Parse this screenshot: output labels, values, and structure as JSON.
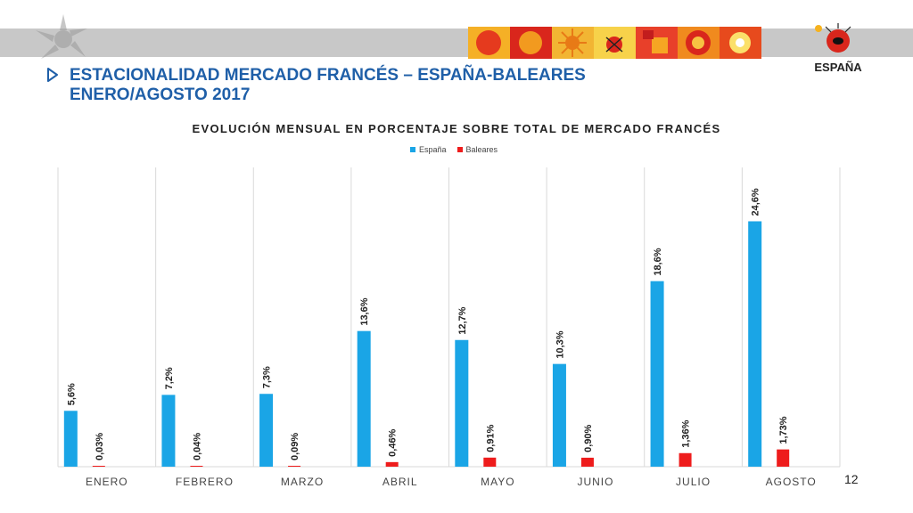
{
  "slide": {
    "title_line1": "ESTACIONALIDAD MERCADO FRANCÉS – ESPAÑA-BALEARES",
    "title_line2": "ENERO/AGOSTO 2017",
    "bullet_icon": "arrow-bullet-icon",
    "page_number": "12",
    "logo_text": "ESPAÑA"
  },
  "colors": {
    "title": "#1f5fa8",
    "espana": "#1aa5e6",
    "baleares": "#ee1c1c",
    "grid": "#d9d9d9"
  },
  "chart_data": {
    "type": "bar",
    "title": "EVOLUCIÓN MENSUAL EN PORCENTAJE SOBRE TOTAL DE MERCADO FRANCÉS",
    "categories": [
      "ENERO",
      "FEBRERO",
      "MARZO",
      "ABRIL",
      "MAYO",
      "JUNIO",
      "JULIO",
      "AGOSTO"
    ],
    "series": [
      {
        "name": "España",
        "values": [
          5.6,
          7.2,
          7.3,
          13.6,
          12.7,
          10.3,
          18.6,
          24.6
        ],
        "labels": [
          "5,6%",
          "7,2%",
          "7,3%",
          "13,6%",
          "12,7%",
          "10,3%",
          "18,6%",
          "24,6%"
        ]
      },
      {
        "name": "Baleares",
        "values": [
          0.03,
          0.04,
          0.09,
          0.46,
          0.91,
          0.9,
          1.36,
          1.73
        ],
        "labels": [
          "0,03%",
          "0,04%",
          "0,09%",
          "0,46%",
          "0,91%",
          "0,90%",
          "1,36%",
          "1,73%"
        ]
      }
    ],
    "ylim": [
      0,
      30
    ],
    "legend": "top-center",
    "grid": "vertical-category-separators",
    "xlabel": "",
    "ylabel": ""
  }
}
